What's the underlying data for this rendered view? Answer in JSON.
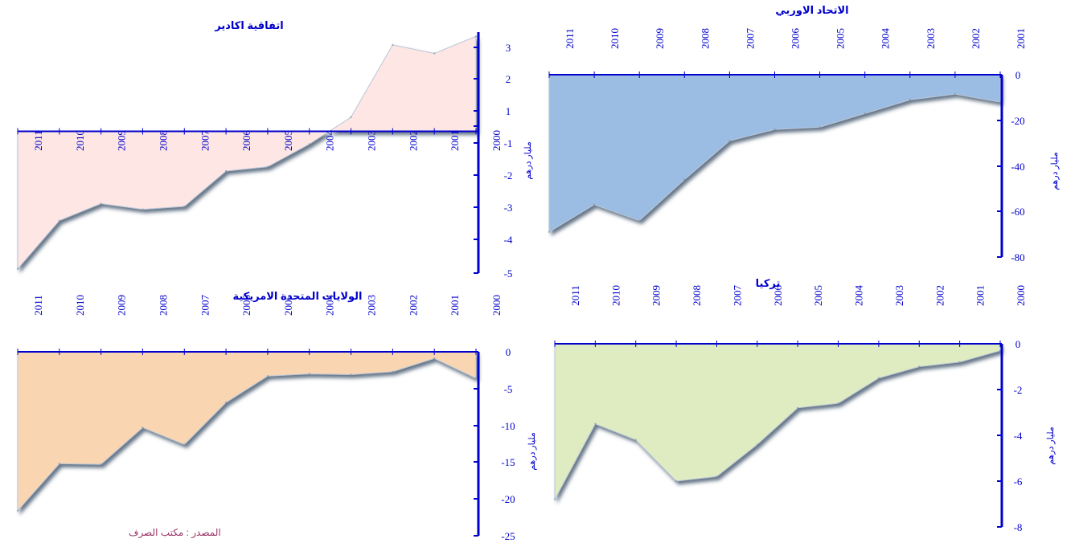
{
  "source_note": "المصدر : مكتب الصرف",
  "chart_data": [
    {
      "id": "agadir",
      "type": "area",
      "title": "اتفاقية اكادير",
      "ylabel": "مليار درهم",
      "x": [
        "2011",
        "2010",
        "2009",
        "2008",
        "2007",
        "2006",
        "2005",
        "2004",
        "2003",
        "2002",
        "2001",
        "2000"
      ],
      "values": [
        -4.85,
        -3.15,
        -2.55,
        -2.75,
        -2.65,
        -1.4,
        -1.25,
        -0.45,
        0.5,
        3.05,
        2.75,
        3.35
      ],
      "yticks": [
        3,
        2,
        1,
        "",
        -1,
        -2,
        -3,
        -4,
        -5
      ],
      "ylim": [
        -5,
        3.5
      ],
      "color": "#fde6e4"
    },
    {
      "id": "eu",
      "type": "area",
      "title": "الاتحاد الاوربي",
      "ylabel": "مليار درهم",
      "x": [
        "2011",
        "2010",
        "2009",
        "2008",
        "2007",
        "2006",
        "2005",
        "2004",
        "2003",
        "2002",
        "2001"
      ],
      "values": [
        -69,
        -57,
        -64,
        -46,
        -29,
        -24,
        -23,
        -17,
        -11,
        -8.5,
        -12
      ],
      "yticks": [
        0,
        -20,
        -40,
        -60,
        -80
      ],
      "ylim": [
        -80,
        0
      ],
      "color": "#9bbce3"
    },
    {
      "id": "usa",
      "type": "area",
      "title": "الولايات المتحدة الامريكية",
      "ylabel": "مليار درهم",
      "x": [
        "2011",
        "2010",
        "2009",
        "2008",
        "2007",
        "2006",
        "2005",
        "2004",
        "2003",
        "2002",
        "2001",
        "2000"
      ],
      "values": [
        -21.6,
        -15.2,
        -15.3,
        -10.3,
        -12.6,
        -6.9,
        -3.3,
        -3.0,
        -3.1,
        -2.7,
        -0.9,
        -3.6
      ],
      "yticks": [
        0,
        -5,
        -10,
        -15,
        -20,
        -25
      ],
      "ylim": [
        -25,
        0
      ],
      "color": "#fad5b2"
    },
    {
      "id": "turkey",
      "type": "area",
      "title": "تركيا",
      "ylabel": "مليار درهم",
      "x": [
        "2011",
        "2010",
        "2009",
        "2008",
        "2007",
        "2006",
        "2005",
        "2004",
        "2003",
        "2002",
        "2001",
        "2000"
      ],
      "values": [
        -6.8,
        -3.5,
        -4.2,
        -6.0,
        -5.8,
        -4.4,
        -2.8,
        -2.6,
        -1.5,
        -1.0,
        -0.8,
        -0.3
      ],
      "yticks": [
        0,
        -2,
        -4,
        -6,
        -8
      ],
      "ylim": [
        -8,
        0
      ],
      "color": "#dfecc2"
    }
  ]
}
